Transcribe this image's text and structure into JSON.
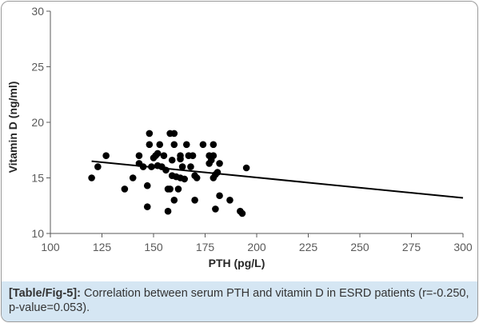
{
  "chart_data": {
    "type": "scatter",
    "title": "",
    "xlabel": "PTH (pg/L)",
    "ylabel": "Vitamin D (ng/ml)",
    "xlim": [
      100,
      300
    ],
    "ylim": [
      10,
      30
    ],
    "x_ticks": [
      100,
      125,
      150,
      175,
      200,
      225,
      250,
      275,
      300
    ],
    "y_ticks": [
      10,
      15,
      20,
      25,
      30
    ],
    "grid": false,
    "legend": "none",
    "point_color": "#000000",
    "trendline": {
      "type": "linear",
      "from": [
        120,
        16.5
      ],
      "to": [
        300,
        13.2
      ]
    },
    "points": [
      [
        120,
        15
      ],
      [
        123,
        16
      ],
      [
        127,
        17
      ],
      [
        136,
        14
      ],
      [
        140,
        15
      ],
      [
        143,
        16.3
      ],
      [
        143,
        17
      ],
      [
        145,
        16
      ],
      [
        147,
        12.4
      ],
      [
        147,
        14.3
      ],
      [
        148,
        18
      ],
      [
        148,
        19
      ],
      [
        149,
        16
      ],
      [
        150,
        16.8
      ],
      [
        151,
        17
      ],
      [
        152,
        16.1
      ],
      [
        152,
        17.2
      ],
      [
        153,
        18
      ],
      [
        154,
        16
      ],
      [
        155,
        17
      ],
      [
        156,
        15.7
      ],
      [
        157,
        12
      ],
      [
        157,
        14
      ],
      [
        158,
        14
      ],
      [
        158,
        19
      ],
      [
        159,
        15.2
      ],
      [
        159,
        16.6
      ],
      [
        160,
        13
      ],
      [
        160,
        18
      ],
      [
        160,
        19
      ],
      [
        161,
        15.1
      ],
      [
        162,
        14
      ],
      [
        163,
        15
      ],
      [
        163,
        16.7
      ],
      [
        163,
        17
      ],
      [
        164,
        16
      ],
      [
        165,
        14.9
      ],
      [
        166,
        18
      ],
      [
        167,
        17
      ],
      [
        168,
        16
      ],
      [
        169,
        17
      ],
      [
        170,
        13
      ],
      [
        170,
        15.2
      ],
      [
        171,
        15
      ],
      [
        174,
        18
      ],
      [
        177,
        17
      ],
      [
        177,
        16.3
      ],
      [
        178,
        16.6
      ],
      [
        179,
        17
      ],
      [
        179,
        18
      ],
      [
        179,
        15
      ],
      [
        180,
        15.3
      ],
      [
        180,
        12.2
      ],
      [
        181,
        15.5
      ],
      [
        182,
        13.4
      ],
      [
        182,
        16.3
      ],
      [
        187,
        13
      ],
      [
        192,
        12
      ],
      [
        193,
        11.8
      ],
      [
        195,
        15.9
      ]
    ]
  },
  "caption": {
    "tag": "[Table/Fig-5]:",
    "text": " Correlation between serum PTH and vitamin D in ESRD patients (r=-0.250, p-value=0.053)."
  },
  "colors": {
    "caption_bg": "#d5e6f3",
    "axis": "#595959",
    "border": "#9a9a9a"
  }
}
